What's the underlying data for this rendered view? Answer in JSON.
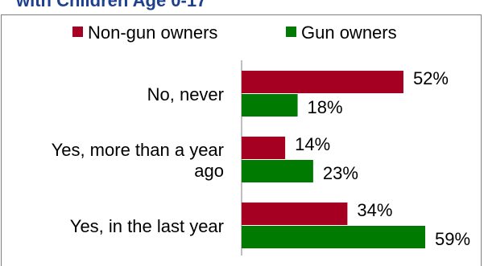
{
  "chart_data": {
    "type": "hbar",
    "title": "with Children Age 0-17",
    "categories": [
      "No, never",
      "Yes, more than a year ago",
      "Yes, in the last year"
    ],
    "series": [
      {
        "name": "Non-gun owners",
        "color": "#a50021",
        "values": [
          52,
          14,
          34
        ],
        "value_labels": [
          "52%",
          "14%",
          "34%"
        ]
      },
      {
        "name": "Gun owners",
        "color": "#007a00",
        "values": [
          18,
          23,
          59
        ],
        "value_labels": [
          "18%",
          "23%",
          "59%"
        ]
      }
    ]
  }
}
